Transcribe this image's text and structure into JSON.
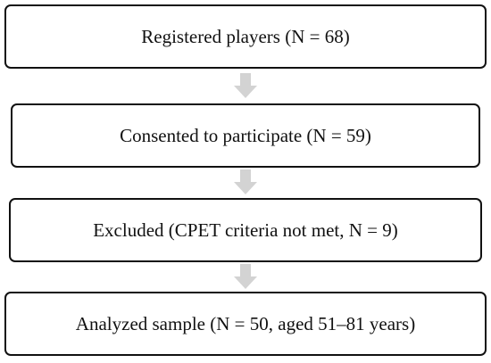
{
  "nodes": [
    {
      "label": "Registered players (N = 68)"
    },
    {
      "label": "Consented to participate (N = 59)"
    },
    {
      "label": "Excluded (CPET criteria not met, N = 9)"
    },
    {
      "label": "Analyzed sample (N = 50, aged 51–81 years)"
    }
  ]
}
